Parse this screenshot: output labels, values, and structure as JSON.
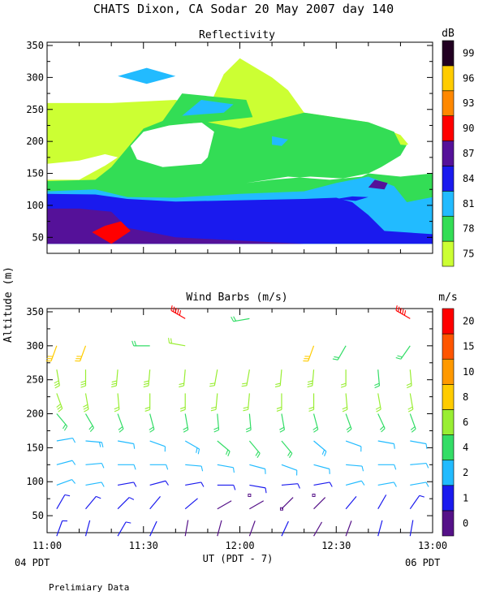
{
  "figure": {
    "title": "CHATS Dixon, CA  Sodar  20 May 2007  day 140",
    "shared_ylabel": "Altitude (m)",
    "xlabel": "UT  (PDT - 7)",
    "x_left_note": "04 PDT",
    "x_right_note": "06 PDT",
    "footer": "Prelimiary Data"
  },
  "chart_data": [
    {
      "type": "heatmap",
      "title": "Reflectivity",
      "colorbar_label": "dB",
      "colorbar_ticks": [
        "75",
        "78",
        "81",
        "84",
        "87",
        "90",
        "93",
        "96",
        "99"
      ],
      "colorbar_colors": [
        "#ccff33",
        "#33dd55",
        "#22bbff",
        "#1a1aee",
        "#551199",
        "#ff0000",
        "#ff8800",
        "#ffcc00",
        "#220022"
      ],
      "x_ticks": [
        "11:00",
        "11:30",
        "12:00",
        "12:30",
        "13:00"
      ],
      "y_ticks": [
        "50",
        "100",
        "150",
        "200",
        "250",
        "300",
        "350"
      ],
      "xlim_min": [
        0,
        120
      ],
      "ylim": [
        25,
        350
      ],
      "data_extent": [
        40,
        260
      ],
      "layers": [
        {
          "level": 75,
          "color": "#ccff33",
          "poly": [
            [
              0,
              40
            ],
            [
              120,
              40
            ],
            [
              120,
              160
            ],
            [
              115,
              180
            ],
            [
              110,
              210
            ],
            [
              100,
              230
            ],
            [
              80,
              245
            ],
            [
              75,
              280
            ],
            [
              70,
              300
            ],
            [
              60,
              330
            ],
            [
              55,
              305
            ],
            [
              50,
              250
            ],
            [
              40,
              265
            ],
            [
              20,
              260
            ],
            [
              0,
              260
            ]
          ]
        },
        {
          "level": 78,
          "color": "#33dd55",
          "poly": [
            [
              0,
              40
            ],
            [
              120,
              40
            ],
            [
              120,
              190
            ],
            [
              110,
              195
            ],
            [
              108,
              215
            ],
            [
              100,
              230
            ],
            [
              80,
              245
            ],
            [
              60,
              220
            ],
            [
              50,
              230
            ],
            [
              40,
              240
            ],
            [
              30,
              220
            ],
            [
              20,
              160
            ],
            [
              15,
              140
            ],
            [
              0,
              138
            ]
          ]
        },
        {
          "level": 81,
          "color": "#22bbff",
          "poly": [
            [
              0,
              40
            ],
            [
              120,
              40
            ],
            [
              120,
              113
            ],
            [
              112,
              105
            ],
            [
              108,
              130
            ],
            [
              100,
              145
            ],
            [
              90,
              135
            ],
            [
              80,
              122
            ],
            [
              60,
              118
            ],
            [
              40,
              112
            ],
            [
              25,
              113
            ],
            [
              15,
              125
            ],
            [
              0,
              122
            ]
          ]
        },
        {
          "level": 84,
          "color": "#1a1aee",
          "poly": [
            [
              0,
              40
            ],
            [
              120,
              40
            ],
            [
              120,
              55
            ],
            [
              105,
              60
            ],
            [
              100,
              85
            ],
            [
              95,
              105
            ],
            [
              90,
              112
            ],
            [
              80,
              110
            ],
            [
              60,
              108
            ],
            [
              40,
              106
            ],
            [
              25,
              110
            ],
            [
              15,
              117
            ],
            [
              0,
              118
            ]
          ]
        },
        {
          "level": 87,
          "color": "#551199",
          "poly": [
            [
              0,
              40
            ],
            [
              80,
              40
            ],
            [
              60,
              45
            ],
            [
              40,
              50
            ],
            [
              25,
              65
            ],
            [
              20,
              90
            ],
            [
              10,
              95
            ],
            [
              0,
              95
            ]
          ]
        },
        {
          "level": 90,
          "color": "#ff0000",
          "poly": [
            [
              20,
              40
            ],
            [
              26,
              60
            ],
            [
              23,
              75
            ],
            [
              18,
              68
            ],
            [
              14,
              58
            ]
          ]
        }
      ],
      "holes": [
        {
          "poly": [
            [
              0,
              165
            ],
            [
              10,
              170
            ],
            [
              18,
              180
            ],
            [
              22,
              175
            ],
            [
              18,
              162
            ],
            [
              10,
              140
            ],
            [
              0,
              140
            ]
          ]
        },
        {
          "poly": [
            [
              26,
              193
            ],
            [
              30,
              215
            ],
            [
              38,
              225
            ],
            [
              48,
              230
            ],
            [
              52,
              215
            ],
            [
              50,
              175
            ],
            [
              48,
              165
            ],
            [
              36,
              160
            ],
            [
              28,
              172
            ]
          ]
        },
        {
          "poly": [
            [
              62,
              135
            ],
            [
              75,
              145
            ],
            [
              88,
              140
            ],
            [
              98,
              145
            ],
            [
              104,
              160
            ],
            [
              110,
              178
            ],
            [
              112,
              195
            ],
            [
              118,
              200
            ],
            [
              120,
              200
            ],
            [
              120,
              150
            ],
            [
              110,
              145
            ],
            [
              100,
              150
            ],
            [
              92,
              142
            ],
            [
              82,
              145
            ],
            [
              70,
              140
            ]
          ]
        }
      ],
      "blobs": [
        {
          "level": 78,
          "color": "#33dd55",
          "poly": [
            [
              35,
              225
            ],
            [
              42,
              275
            ],
            [
              62,
              265
            ],
            [
              64,
              238
            ],
            [
              50,
              230
            ]
          ]
        },
        {
          "level": 81,
          "color": "#22bbff",
          "poly": [
            [
              42,
              240
            ],
            [
              48,
              265
            ],
            [
              58,
              258
            ],
            [
              55,
              245
            ]
          ]
        },
        {
          "level": 81,
          "color": "#22bbff",
          "poly": [
            [
              70,
              195
            ],
            [
              70,
              208
            ],
            [
              75,
              203
            ],
            [
              73,
              193
            ]
          ]
        },
        {
          "level": 84,
          "color": "#1a1aee",
          "poly": [
            [
              90,
              110
            ],
            [
              95,
              114
            ],
            [
              100,
              113
            ],
            [
              96,
              107
            ]
          ]
        },
        {
          "level": 87,
          "color": "#551199",
          "poly": [
            [
              102,
              140
            ],
            [
              106,
              135
            ],
            [
              105,
              125
            ],
            [
              100,
              128
            ]
          ]
        },
        {
          "level": 90,
          "color": "#ff0000",
          "poly": [
            [
              28,
              302
            ],
            [
              32,
              305
            ],
            [
              34,
              300
            ],
            [
              30,
              296
            ]
          ]
        },
        {
          "level": 96,
          "color": "#ffcc00",
          "poly": [
            [
              26,
              302
            ],
            [
              32,
              308
            ],
            [
              36,
              300
            ],
            [
              30,
              295
            ]
          ]
        },
        {
          "level": 81,
          "color": "#22bbff",
          "poly": [
            [
              22,
              302
            ],
            [
              31,
              315
            ],
            [
              40,
              302
            ],
            [
              31,
              290
            ]
          ]
        }
      ]
    },
    {
      "type": "scatter",
      "title": "Wind Barbs (m/s)",
      "colorbar_label": "m/s",
      "colorbar_ticks": [
        "0",
        "1",
        "2",
        "4",
        "6",
        "8",
        "10",
        "15",
        "20"
      ],
      "colorbar_colors": [
        "#551188",
        "#1a1aee",
        "#22bbff",
        "#33dd66",
        "#99ee33",
        "#ffcc00",
        "#ff9900",
        "#ff5500",
        "#ff0000"
      ],
      "x_ticks": [
        "11:00",
        "11:30",
        "12:00",
        "12:30",
        "13:00"
      ],
      "y_ticks": [
        "50",
        "100",
        "150",
        "200",
        "250",
        "300",
        "350"
      ],
      "xlim_min": [
        0,
        120
      ],
      "ylim": [
        25,
        350
      ],
      "times_min": [
        3,
        12,
        22,
        32,
        43,
        53,
        63,
        73,
        83,
        93,
        103,
        113
      ],
      "altitudes_m": [
        20,
        60,
        95,
        125,
        160,
        200,
        230,
        265,
        300,
        340
      ],
      "speed_ms": [
        [
          1.5,
          1.2,
          1.5,
          1.0,
          0.8,
          0.9,
          0.9,
          1.0,
          0.8,
          0.9,
          1.0,
          1.2
        ],
        [
          1.5,
          1.3,
          1.8,
          1.2,
          1.0,
          0.8,
          0.6,
          0.5,
          0.5,
          1.2,
          1.0,
          1.5
        ],
        [
          2.5,
          2.0,
          1.8,
          1.5,
          1.5,
          1.3,
          1.5,
          1.4,
          1.8,
          2.0,
          2.0,
          2.5
        ],
        [
          3.0,
          3.2,
          3.0,
          3.0,
          3.0,
          3.0,
          3.0,
          3.2,
          3.5,
          3.0,
          3.0,
          3.2
        ],
        [
          3.5,
          3.8,
          3.5,
          3.5,
          3.8,
          4.0,
          4.0,
          4.2,
          3.8,
          3.0,
          3.0,
          3.5
        ],
        [
          5.0,
          5.0,
          5.2,
          5.5,
          5.5,
          5.5,
          5.5,
          5.0,
          5.0,
          5.0,
          5.2,
          5.0
        ],
        [
          6.5,
          6.5,
          6.0,
          6.0,
          6.0,
          6.0,
          6.0,
          6.0,
          6.2,
          6.0,
          6.0,
          6.2
        ],
        [
          7.0,
          7.0,
          6.8,
          6.5,
          6.0,
          6.0,
          6.0,
          6.0,
          6.5,
          6.0,
          5.5,
          6.0
        ],
        [
          8.0,
          8.0,
          0,
          4.0,
          6.0,
          0,
          0,
          0,
          8.5,
          5.0,
          0,
          5.0
        ],
        [
          0,
          0,
          0,
          0,
          20.0,
          0,
          5.0,
          0,
          0,
          0,
          0,
          20.0
        ]
      ],
      "direction_deg": [
        [
          20,
          15,
          30,
          25,
          10,
          15,
          20,
          25,
          30,
          20,
          15,
          10
        ],
        [
          30,
          40,
          45,
          40,
          50,
          60,
          60,
          45,
          45,
          40,
          30,
          35
        ],
        [
          70,
          80,
          80,
          75,
          80,
          90,
          100,
          85,
          80,
          75,
          80,
          80
        ],
        [
          75,
          85,
          90,
          90,
          95,
          100,
          105,
          110,
          105,
          95,
          90,
          85
        ],
        [
          80,
          95,
          100,
          110,
          120,
          130,
          140,
          140,
          130,
          110,
          100,
          100
        ],
        [
          140,
          150,
          160,
          165,
          170,
          175,
          175,
          170,
          165,
          160,
          155,
          160
        ],
        [
          160,
          170,
          175,
          180,
          180,
          185,
          185,
          180,
          180,
          175,
          170,
          170
        ],
        [
          170,
          180,
          185,
          185,
          185,
          190,
          190,
          185,
          185,
          180,
          175,
          175
        ],
        [
          200,
          200,
          0,
          270,
          280,
          0,
          0,
          0,
          200,
          210,
          0,
          215
        ],
        [
          0,
          0,
          0,
          0,
          300,
          0,
          260,
          0,
          0,
          0,
          0,
          300
        ]
      ]
    }
  ]
}
